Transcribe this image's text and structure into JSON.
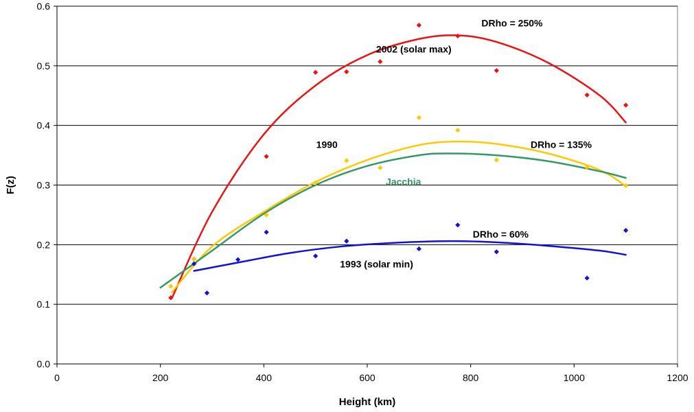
{
  "chart_data": {
    "type": "scatter",
    "title": "",
    "xlabel": "Height (km)",
    "ylabel": "F(z)",
    "xlim": [
      0,
      1200
    ],
    "ylim": [
      0.0,
      0.6
    ],
    "x_ticks": [
      0,
      200,
      400,
      600,
      800,
      1000,
      1200
    ],
    "y_ticks": [
      0.0,
      0.1,
      0.2,
      0.3,
      0.4,
      0.5,
      0.6
    ],
    "x_tick_labels": [
      "0",
      "200",
      "400",
      "600",
      "800",
      "1000",
      "1200"
    ],
    "y_tick_labels": [
      "0.0",
      "0.1",
      "0.2",
      "0.3",
      "0.4",
      "0.5",
      "0.6"
    ],
    "grid": "horizontal",
    "legend": "none",
    "series": [
      {
        "key": "red",
        "color": "#ee1111",
        "points": [
          [
            220,
            0.111
          ],
          [
            265,
            0.176
          ],
          [
            405,
            0.348
          ],
          [
            500,
            0.489
          ],
          [
            560,
            0.49
          ],
          [
            625,
            0.507
          ],
          [
            700,
            0.568
          ],
          [
            775,
            0.55
          ],
          [
            850,
            0.492
          ],
          [
            1025,
            0.451
          ],
          [
            1100,
            0.434
          ]
        ],
        "fit": [
          [
            222,
            0.11
          ],
          [
            300,
            0.255
          ],
          [
            400,
            0.385
          ],
          [
            500,
            0.467
          ],
          [
            600,
            0.518
          ],
          [
            700,
            0.545
          ],
          [
            775,
            0.551
          ],
          [
            850,
            0.54
          ],
          [
            950,
            0.505
          ],
          [
            1050,
            0.45
          ],
          [
            1100,
            0.405
          ]
        ]
      },
      {
        "key": "yellow",
        "color": "#ffc800",
        "points": [
          [
            220,
            0.13
          ],
          [
            265,
            0.176
          ],
          [
            405,
            0.25
          ],
          [
            500,
            0.304
          ],
          [
            560,
            0.341
          ],
          [
            625,
            0.329
          ],
          [
            700,
            0.413
          ],
          [
            775,
            0.392
          ],
          [
            850,
            0.342
          ],
          [
            1025,
            0.33
          ],
          [
            1100,
            0.299
          ]
        ],
        "fit": [
          [
            222,
            0.12
          ],
          [
            300,
            0.197
          ],
          [
            400,
            0.255
          ],
          [
            500,
            0.305
          ],
          [
            600,
            0.342
          ],
          [
            700,
            0.367
          ],
          [
            775,
            0.373
          ],
          [
            850,
            0.369
          ],
          [
            950,
            0.353
          ],
          [
            1050,
            0.325
          ],
          [
            1100,
            0.298
          ]
        ]
      },
      {
        "key": "green",
        "color": "#339966",
        "points": [],
        "fit": [
          [
            200,
            0.128
          ],
          [
            300,
            0.19
          ],
          [
            400,
            0.252
          ],
          [
            500,
            0.3
          ],
          [
            600,
            0.332
          ],
          [
            700,
            0.35
          ],
          [
            760,
            0.353
          ],
          [
            850,
            0.35
          ],
          [
            950,
            0.34
          ],
          [
            1050,
            0.323
          ],
          [
            1100,
            0.312
          ]
        ]
      },
      {
        "key": "blue",
        "color": "#1111dd",
        "points": [
          [
            265,
            0.168
          ],
          [
            290,
            0.119
          ],
          [
            350,
            0.175
          ],
          [
            405,
            0.221
          ],
          [
            500,
            0.181
          ],
          [
            560,
            0.206
          ],
          [
            700,
            0.193
          ],
          [
            775,
            0.233
          ],
          [
            850,
            0.188
          ],
          [
            1025,
            0.144
          ],
          [
            1100,
            0.224
          ]
        ],
        "fit": [
          [
            265,
            0.156
          ],
          [
            350,
            0.17
          ],
          [
            450,
            0.186
          ],
          [
            550,
            0.197
          ],
          [
            650,
            0.203
          ],
          [
            760,
            0.206
          ],
          [
            850,
            0.204
          ],
          [
            950,
            0.198
          ],
          [
            1050,
            0.19
          ],
          [
            1100,
            0.183
          ]
        ]
      }
    ],
    "annotations": [
      {
        "text": "DRho = 250%",
        "x": 880,
        "y": 0.566,
        "color": "#000000"
      },
      {
        "text": "2002 (solar max)",
        "x": 690,
        "y": 0.522,
        "color": "#000000"
      },
      {
        "text": "1990",
        "x": 522,
        "y": 0.362,
        "color": "#000000"
      },
      {
        "text": "DRho = 135%",
        "x": 975,
        "y": 0.362,
        "color": "#000000"
      },
      {
        "text": "Jacchia",
        "x": 670,
        "y": 0.3,
        "color": "#339966"
      },
      {
        "text": "DRho = 60%",
        "x": 858,
        "y": 0.212,
        "color": "#000000"
      },
      {
        "text": "1993 (solar min)",
        "x": 618,
        "y": 0.162,
        "color": "#000000"
      }
    ]
  }
}
